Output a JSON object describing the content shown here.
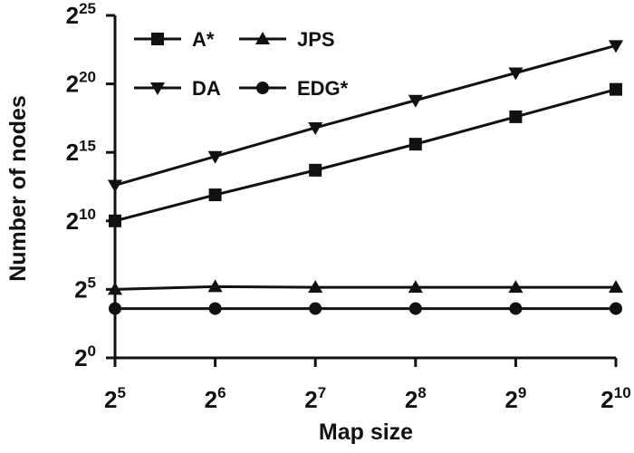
{
  "chart_data": {
    "type": "line",
    "xlabel": "Map size",
    "ylabel": "Number of nodes",
    "x_base": "2",
    "y_base": "2",
    "x_exponents": [
      "5",
      "6",
      "7",
      "8",
      "9",
      "10"
    ],
    "y_exponents": [
      "0",
      "5",
      "10",
      "15",
      "20",
      "25"
    ],
    "x": [
      5,
      6,
      7,
      8,
      9,
      10
    ],
    "xlim": [
      5,
      10
    ],
    "ylim": [
      0,
      25
    ],
    "scale": "log2",
    "grid": false,
    "legend_position": "top-left",
    "series": [
      {
        "name": "A*",
        "marker": "square",
        "values": [
          10.0,
          11.9,
          13.7,
          15.6,
          17.6,
          19.6
        ]
      },
      {
        "name": "JPS",
        "marker": "triangle-up",
        "values": [
          5.0,
          5.2,
          5.15,
          5.15,
          5.15,
          5.15
        ]
      },
      {
        "name": "DA",
        "marker": "triangle-down",
        "values": [
          12.6,
          14.7,
          16.8,
          18.8,
          20.8,
          22.8
        ]
      },
      {
        "name": "EDG*",
        "marker": "circle",
        "values": [
          3.6,
          3.6,
          3.6,
          3.6,
          3.6,
          3.6
        ]
      }
    ],
    "colors": {
      "line": "#111111",
      "background": "#ffffff"
    }
  }
}
